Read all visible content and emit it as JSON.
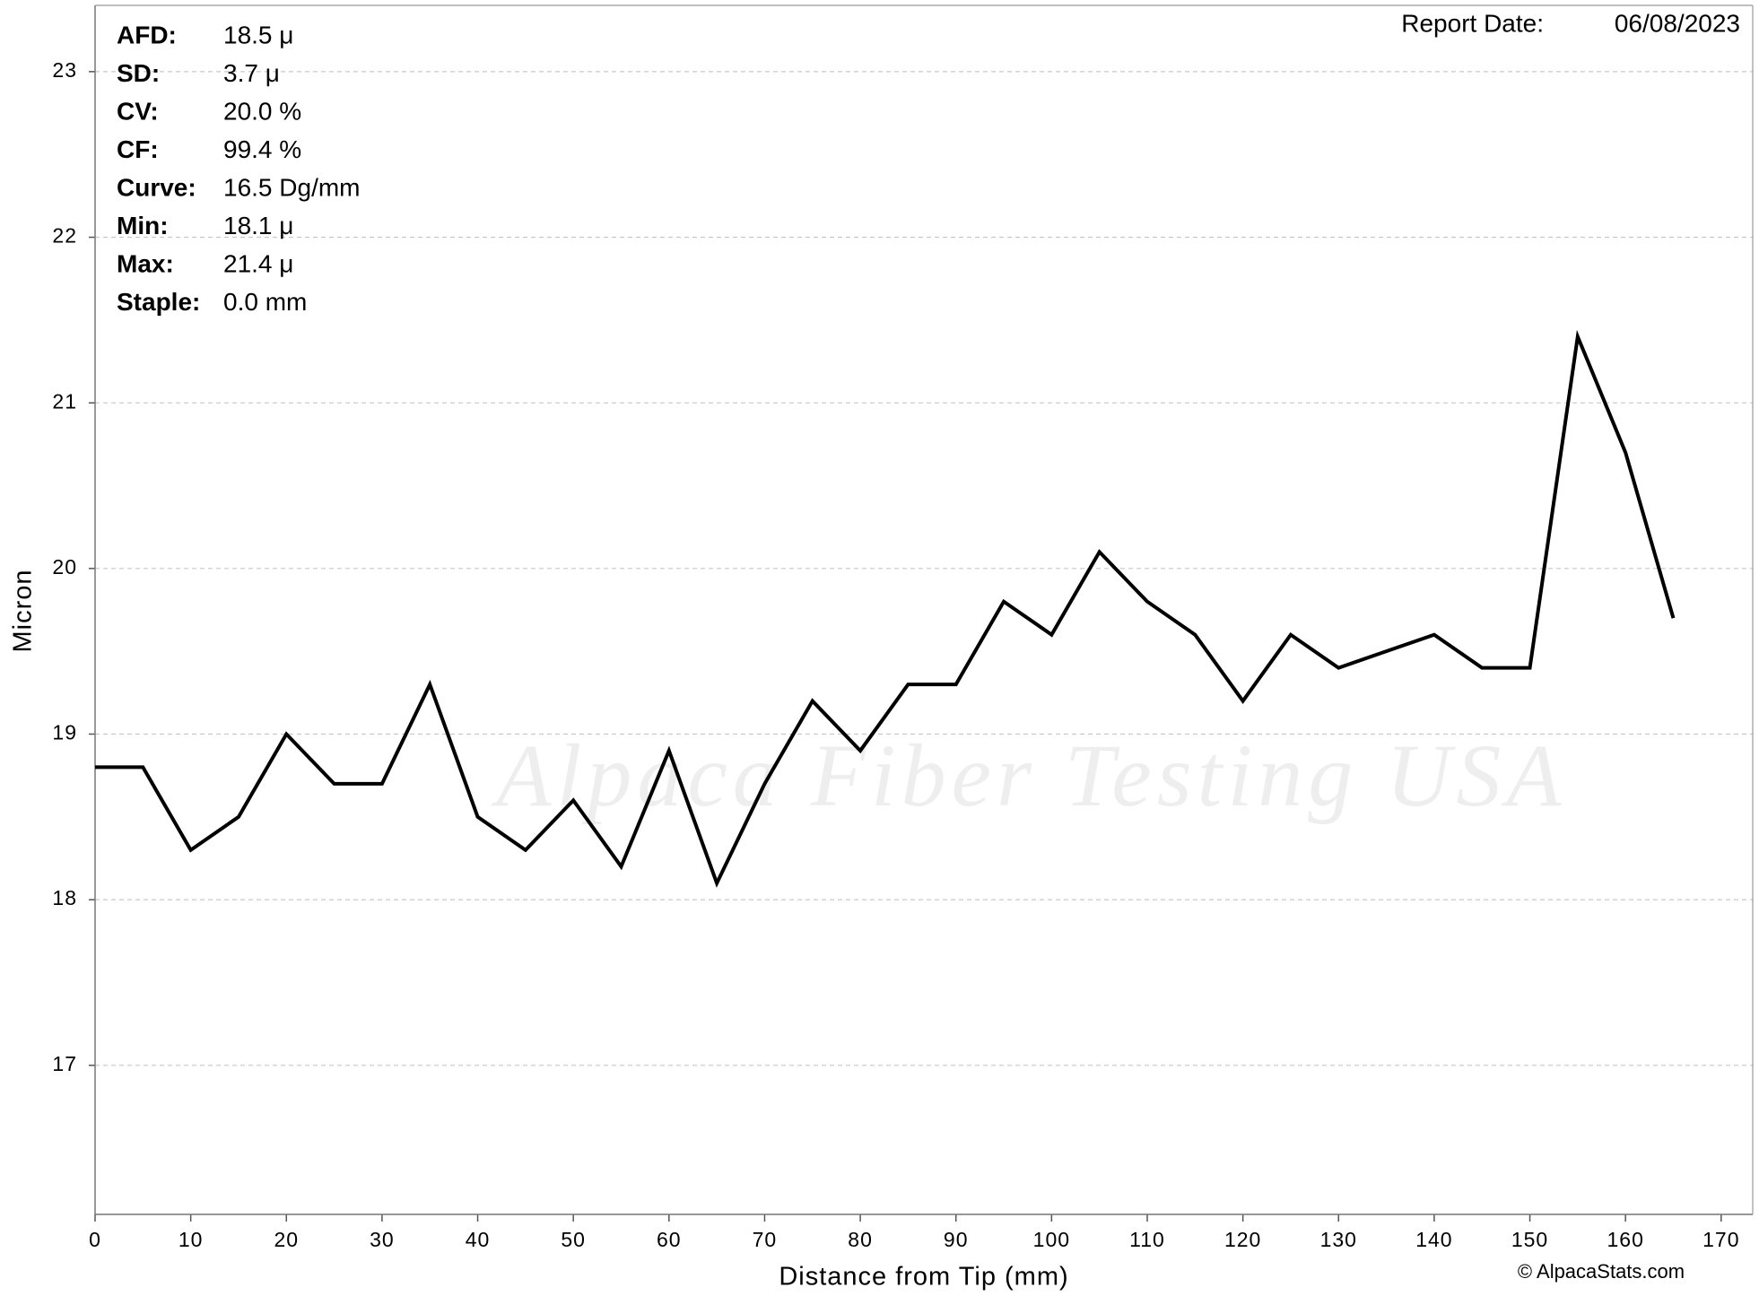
{
  "chart_data": {
    "type": "line",
    "x_label": "Distance from Tip (mm)",
    "y_label": "Micron",
    "watermark": "Alpaca Fiber Testing USA",
    "copyright": "© AlpacaStats.com",
    "report_date_label": "Report Date:",
    "report_date": "06/08/2023",
    "stats": [
      {
        "label": "AFD:",
        "value": "18.5 μ"
      },
      {
        "label": "SD:",
        "value": "3.7 μ"
      },
      {
        "label": "CV:",
        "value": "20.0 %"
      },
      {
        "label": "CF:",
        "value": "99.4 %"
      },
      {
        "label": "Curve:",
        "value": "16.5 Dg/mm"
      },
      {
        "label": "Min:",
        "value": "18.1 μ"
      },
      {
        "label": "Max:",
        "value": "21.4 μ"
      },
      {
        "label": "Staple:",
        "value": "0.0 mm"
      }
    ],
    "x": [
      0,
      5,
      10,
      15,
      20,
      25,
      30,
      35,
      40,
      45,
      50,
      55,
      60,
      65,
      70,
      75,
      80,
      85,
      90,
      95,
      100,
      105,
      110,
      115,
      120,
      125,
      130,
      135,
      140,
      145,
      150,
      155,
      160,
      165
    ],
    "series": [
      {
        "name": "Micron",
        "color": "#000000",
        "values": [
          18.8,
          18.8,
          18.3,
          18.5,
          19.0,
          18.7,
          18.7,
          19.3,
          18.5,
          18.3,
          18.6,
          18.2,
          18.9,
          18.1,
          18.7,
          19.2,
          18.9,
          19.3,
          19.3,
          19.8,
          19.6,
          20.1,
          19.8,
          19.6,
          19.2,
          19.6,
          19.4,
          19.5,
          19.6,
          19.4,
          19.4,
          21.4,
          20.7,
          19.7
        ]
      }
    ],
    "xlim": [
      0,
      173.3
    ],
    "ylim": [
      16.1,
      23.4
    ],
    "xticks": [
      0,
      10,
      20,
      30,
      40,
      50,
      60,
      70,
      80,
      90,
      100,
      110,
      120,
      130,
      140,
      150,
      160,
      170
    ],
    "yticks": [
      17,
      18,
      19,
      20,
      21,
      22,
      23
    ],
    "grid": true
  }
}
